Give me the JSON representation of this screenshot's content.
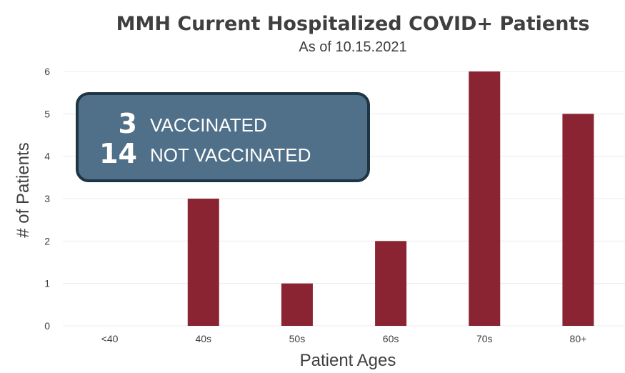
{
  "chart_data": {
    "type": "bar",
    "title": "MMH Current Hospitalized COVID+ Patients",
    "subtitle": "As of 10.15.2021",
    "xlabel": "Patient Ages",
    "ylabel": "# of Patients",
    "categories": [
      "<40",
      "40s",
      "50s",
      "60s",
      "70s",
      "80+"
    ],
    "values": [
      0,
      3,
      1,
      2,
      6,
      5
    ],
    "ylim": [
      0,
      6
    ],
    "yticks": [
      "0",
      "1",
      "2",
      "3",
      "4",
      "5",
      "6"
    ],
    "grid": true,
    "colors": {
      "bar": "#8a2432",
      "callout": "#4f7088"
    }
  },
  "callout": {
    "vaccinated_count": "3",
    "vaccinated_label": "VACCINATED",
    "not_vaccinated_count": "14",
    "not_vaccinated_label": "NOT VACCINATED"
  }
}
